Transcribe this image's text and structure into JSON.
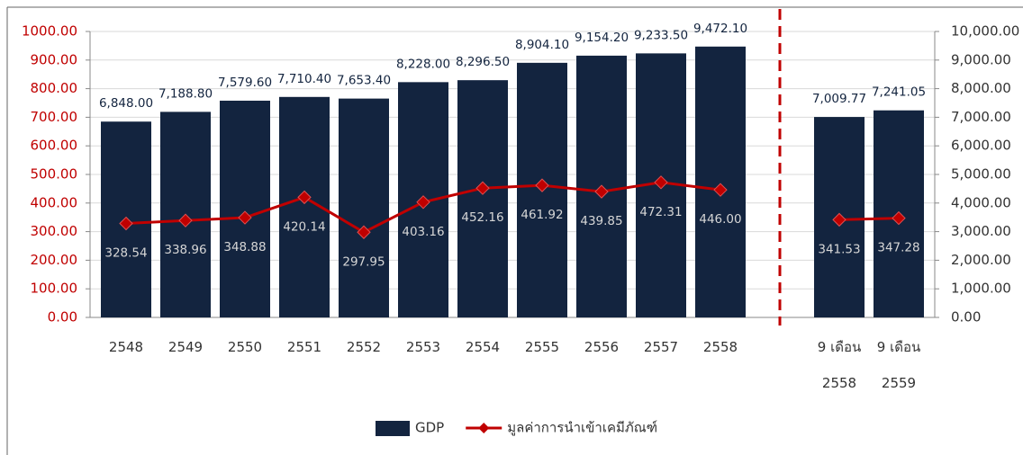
{
  "chart_data": {
    "type": "bar_line",
    "categories": [
      [
        "2548"
      ],
      [
        "2549"
      ],
      [
        "2550"
      ],
      [
        "2551"
      ],
      [
        "2552"
      ],
      [
        "2553"
      ],
      [
        "2554"
      ],
      [
        "2555"
      ],
      [
        "2556"
      ],
      [
        "2557"
      ],
      [
        "2558"
      ],
      null,
      [
        "9 เดือน",
        "2558"
      ],
      [
        "9 เดือน",
        "2559"
      ]
    ],
    "series": [
      {
        "name": "GDP",
        "type": "bar",
        "axis": "y2",
        "color": "#13243f",
        "values": [
          6848,
          7188.8,
          7579.6,
          7710.4,
          7653.4,
          8228,
          8296.5,
          8904.1,
          9154.2,
          9233.5,
          9472.1,
          null,
          7009.77,
          7241.05
        ],
        "value_labels": [
          "6,848.00",
          "7,188.80",
          "7,579.60",
          "7,710.40",
          "7,653.40",
          "8,228.00",
          "8,296.50",
          "8,904.10",
          "9,154.20",
          "9,233.50",
          "9,472.10",
          null,
          "7,009.77",
          "7,241.05"
        ]
      },
      {
        "name": "มูลค่าการนำเข้าเคมีภัณฑ์",
        "type": "line",
        "axis": "y",
        "color": "#c00000",
        "values": [
          328.54,
          338.96,
          348.88,
          420.14,
          297.95,
          403.16,
          452.16,
          461.92,
          439.85,
          472.31,
          446,
          null,
          341.53,
          347.28
        ],
        "value_labels": [
          "328.54",
          "338.96",
          "348.88",
          "420.14",
          "297.95",
          "403.16",
          "452.16",
          "461.92",
          "439.85",
          "472.31",
          "446.00",
          null,
          "341.53",
          "347.28"
        ]
      }
    ],
    "ylim": [
      0,
      1000
    ],
    "yticks": [
      {
        "value": 0,
        "label": "0.00"
      },
      {
        "value": 100,
        "label": "100.00"
      },
      {
        "value": 200,
        "label": "200.00"
      },
      {
        "value": 300,
        "label": "300.00"
      },
      {
        "value": 400,
        "label": "400.00"
      },
      {
        "value": 500,
        "label": "500.00"
      },
      {
        "value": 600,
        "label": "600.00"
      },
      {
        "value": 700,
        "label": "700.00"
      },
      {
        "value": 800,
        "label": "800.00"
      },
      {
        "value": 900,
        "label": "900.00"
      },
      {
        "value": 1000,
        "label": "1000.00"
      }
    ],
    "y2lim": [
      0,
      10000
    ],
    "y2ticks": [
      {
        "value": 0,
        "label": "0.00"
      },
      {
        "value": 1000,
        "label": "1,000.00"
      },
      {
        "value": 2000,
        "label": "2,000.00"
      },
      {
        "value": 3000,
        "label": "3,000.00"
      },
      {
        "value": 4000,
        "label": "4,000.00"
      },
      {
        "value": 5000,
        "label": "5,000.00"
      },
      {
        "value": 6000,
        "label": "6,000.00"
      },
      {
        "value": 7000,
        "label": "7,000.00"
      },
      {
        "value": 8000,
        "label": "8,000.00"
      },
      {
        "value": 9000,
        "label": "9,000.00"
      },
      {
        "value": 10000,
        "label": "10,000.00"
      }
    ],
    "grid": true,
    "legend": "bottom"
  }
}
